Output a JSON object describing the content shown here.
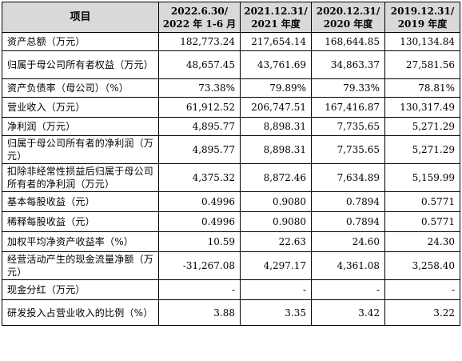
{
  "table": {
    "headers": [
      "项目",
      "2022.6.30/\n2022 年 1-6 月",
      "2021.12.31/\n2021 年度",
      "2020.12.31/\n2020 年度",
      "2019.12.31/\n2019 年度"
    ],
    "rows": [
      {
        "label": "资产总额（万元）",
        "values": [
          "182,773.24",
          "217,654.14",
          "168,644.85",
          "130,134.84"
        ]
      },
      {
        "label": "归属于母公司所有者权益（万元）",
        "values": [
          "48,657.45",
          "43,761.69",
          "34,863.37",
          "27,581.56"
        ]
      },
      {
        "label": "资产负债率（母公司）（%）",
        "values": [
          "73.38%",
          "79.89%",
          "79.33%",
          "78.81%"
        ]
      },
      {
        "label": "营业收入（万元）",
        "values": [
          "61,912.52",
          "206,747.51",
          "167,416.87",
          "130,317.49"
        ]
      },
      {
        "label": "净利润（万元）",
        "values": [
          "4,895.77",
          "8,898.31",
          "7,735.65",
          "5,271.29"
        ]
      },
      {
        "label": "归属于母公司所有者的净利润（万元）",
        "values": [
          "4,895.77",
          "8,898.31",
          "7,735.65",
          "5,271.29"
        ]
      },
      {
        "label": "扣除非经常性损益后归属于母公司所有者的净利润（万元）",
        "values": [
          "4,375.32",
          "8,872.46",
          "7,634.89",
          "5,159.99"
        ]
      },
      {
        "label": "基本每股收益（元）",
        "values": [
          "0.4996",
          "0.9080",
          "0.7894",
          "0.5771"
        ]
      },
      {
        "label": "稀释每股收益（元）",
        "values": [
          "0.4996",
          "0.9080",
          "0.7894",
          "0.5771"
        ]
      },
      {
        "label": "加权平均净资产收益率（%）",
        "values": [
          "10.59",
          "22.63",
          "24.60",
          "24.30"
        ]
      },
      {
        "label": "经营活动产生的现金流量净额（万元）",
        "values": [
          "-31,267.08",
          "4,297.17",
          "4,361.08",
          "3,258.40"
        ]
      },
      {
        "label": "现金分红（万元）",
        "values": [
          "-",
          "-",
          "-",
          "-"
        ]
      },
      {
        "label": "研发投入占营业收入的比例（%）",
        "values": [
          "3.88",
          "3.35",
          "3.42",
          "3.22"
        ]
      }
    ]
  }
}
